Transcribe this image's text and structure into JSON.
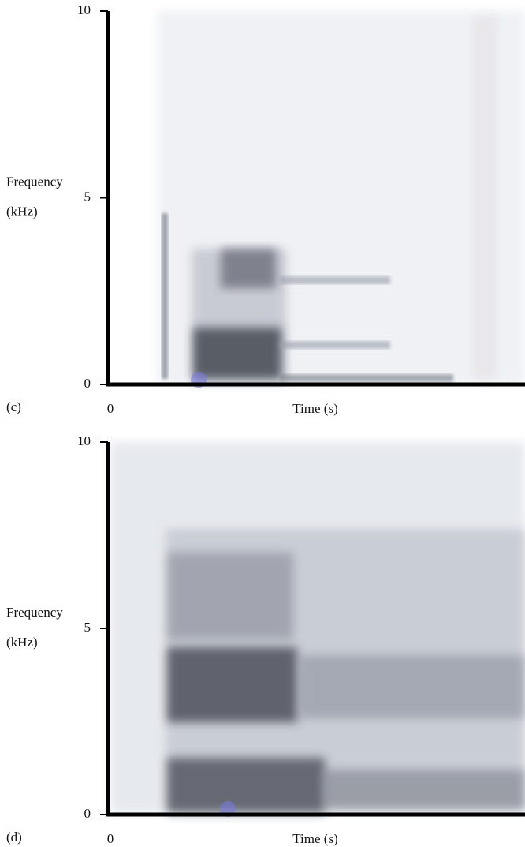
{
  "chart_data": [
    {
      "type": "spectrogram",
      "panel": "(c)",
      "xlabel": "Time (s)",
      "ylabel": [
        "Frequency",
        "(kHz)"
      ],
      "ylim": [
        0,
        10
      ],
      "yticks": [
        0,
        5,
        10
      ],
      "xticks": [
        0
      ]
    },
    {
      "type": "spectrogram",
      "panel": "(d)",
      "xlabel": "Time (s)",
      "ylabel": [
        "Frequency",
        "(kHz)"
      ],
      "ylim": [
        0,
        10
      ],
      "yticks": [
        0,
        5,
        10
      ],
      "xticks": [
        0
      ]
    }
  ]
}
